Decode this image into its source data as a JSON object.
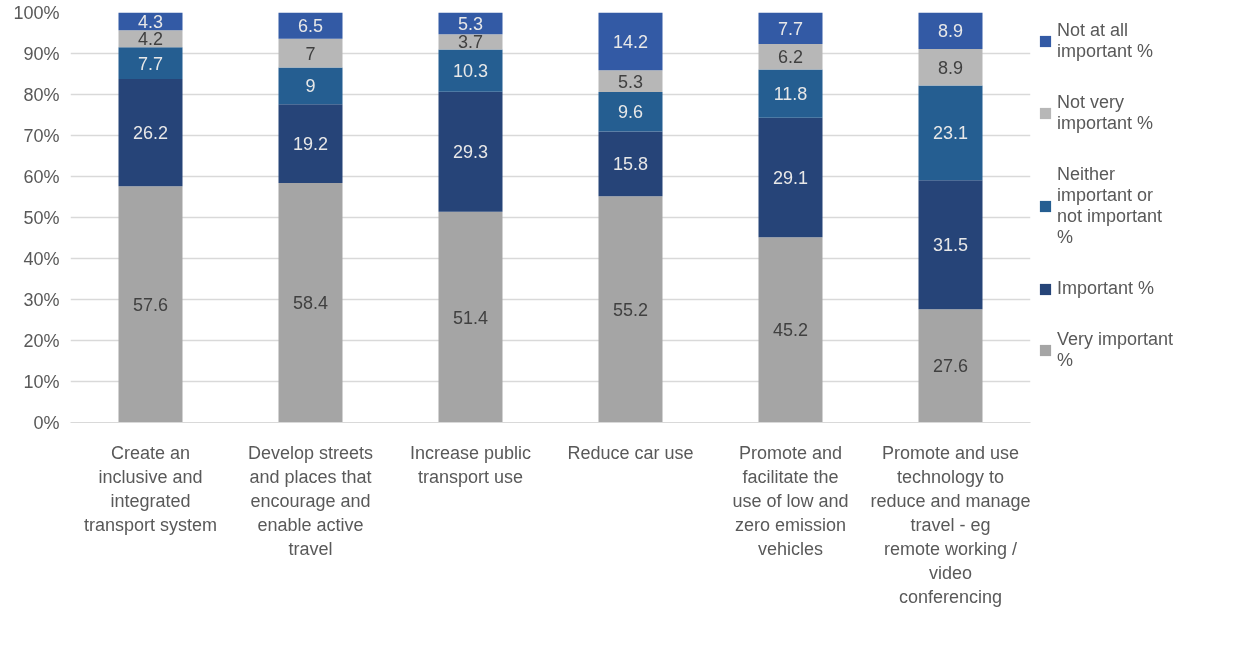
{
  "chart_data": {
    "type": "bar",
    "stacked": true,
    "categories": [
      "Create an inclusive and integrated transport system",
      "Develop streets and places that encourage and enable active travel",
      "Increase public transport use",
      "Reduce car use",
      "Promote and facilitate the use of low and zero emission vehicles",
      "Promote and use technology to reduce and manage travel - eg remote working / video conferencing"
    ],
    "series": [
      {
        "name": "Very important %",
        "color": "#a5a5a5",
        "values": [
          57.6,
          58.4,
          51.4,
          55.2,
          45.2,
          27.6
        ]
      },
      {
        "name": "Important %",
        "color": "#264478",
        "values": [
          26.2,
          19.2,
          29.3,
          15.8,
          29.1,
          31.5
        ]
      },
      {
        "name": "Neither important or not important %",
        "color": "#255e91",
        "values": [
          7.7,
          9,
          10.3,
          9.6,
          11.8,
          23.1
        ]
      },
      {
        "name": "Not very important %",
        "color": "#b7b7b7",
        "values": [
          4.2,
          7,
          3.7,
          5.3,
          6.2,
          8.9
        ]
      },
      {
        "name": "Not at all important %",
        "color": "#335aa5",
        "values": [
          4.3,
          6.5,
          5.3,
          14.2,
          7.7,
          8.9
        ]
      }
    ],
    "ylim": [
      0,
      100
    ],
    "yticks": [
      {
        "value": 0,
        "label": "0%"
      },
      {
        "value": 10,
        "label": "10%"
      },
      {
        "value": 20,
        "label": "20%"
      },
      {
        "value": 30,
        "label": "30%"
      },
      {
        "value": 40,
        "label": "40%"
      },
      {
        "value": 50,
        "label": "50%"
      },
      {
        "value": 60,
        "label": "60%"
      },
      {
        "value": 70,
        "label": "70%"
      },
      {
        "value": 80,
        "label": "80%"
      },
      {
        "value": 90,
        "label": "90%"
      },
      {
        "value": 100,
        "label": "100%"
      }
    ],
    "grid": "y",
    "legend": "right",
    "data_labels": true
  }
}
